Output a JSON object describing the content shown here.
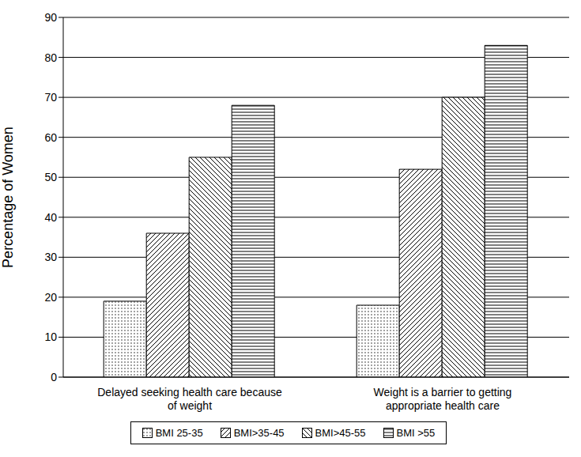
{
  "chart_data": {
    "type": "bar",
    "categories": [
      "Delayed seeking health care because of weight",
      "Weight is a barrier to getting appropriate health care"
    ],
    "series": [
      {
        "name": "BMI 25-35",
        "color": "#000000",
        "values": [
          19,
          18
        ]
      },
      {
        "name": "BMI>35-45",
        "color": "#000000",
        "values": [
          36,
          52
        ]
      },
      {
        "name": "BMI>45-55",
        "color": "#000000",
        "values": [
          55,
          70
        ]
      },
      {
        "name": "BMI >55",
        "color": "#000000",
        "values": [
          68,
          83
        ]
      }
    ],
    "ylabel": "Percentage of Women",
    "ylim": [
      0,
      90
    ],
    "yticks": [
      0,
      10,
      20,
      30,
      40,
      50,
      60,
      70,
      80,
      90
    ],
    "grid": true,
    "legend": "bottom"
  }
}
